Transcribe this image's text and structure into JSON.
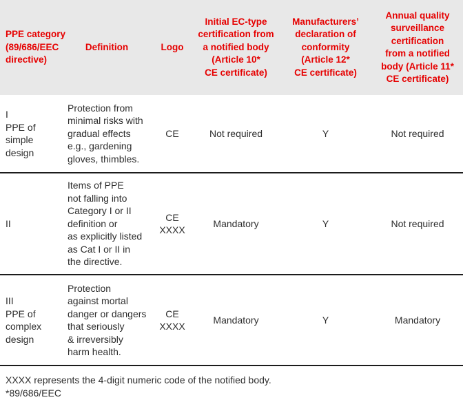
{
  "colors": {
    "accent_red": "#e60000",
    "header_bg": "#e8e8e8",
    "rule": "#1c1c1c",
    "body_text": "#2d2d2d"
  },
  "table": {
    "headers": [
      "PPE category\n(89/686/EEC\ndirective)",
      "Definition",
      "Logo",
      "Initial EC-type\ncertification from\na notified body\n(Article 10*\nCE certificate)",
      "Manufacturers’\ndeclaration of\nconformity\n(Article 12*\nCE certificate)",
      "Annual quality\nsurveillance\ncertification\nfrom a notified\nbody (Article 11*\nCE certificate)"
    ],
    "rows": [
      {
        "category": "I\nPPE of\nsimple\ndesign",
        "definition": "Protection from\nminimal risks with\ngradual effects\ne.g., gardening\ngloves, thimbles.",
        "logo": "CE",
        "initial_certification": "Not required",
        "declaration_of_conformity": "Y",
        "annual_surveillance": "Not required"
      },
      {
        "category": "II",
        "definition": "Items of PPE\nnot falling into\nCategory I or II\ndefinition or\nas explicitly listed\nas Cat I or II in\nthe directive.",
        "logo": "CE\nXXXX",
        "initial_certification": "Mandatory",
        "declaration_of_conformity": "Y",
        "annual_surveillance": "Not required"
      },
      {
        "category": "III\nPPE of\ncomplex\ndesign",
        "definition": "Protection\nagainst mortal\ndanger or dangers\nthat seriously\n& irreversibly\nharm health.",
        "logo": "CE\nXXXX",
        "initial_certification": "Mandatory",
        "declaration_of_conformity": "Y",
        "annual_surveillance": "Mandatory"
      }
    ]
  },
  "footnotes": {
    "line1": "XXXX represents the 4-digit numeric code of the notified body.",
    "line2": "*89/686/EEC"
  }
}
